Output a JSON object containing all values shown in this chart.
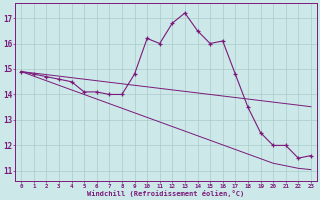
{
  "x": [
    0,
    1,
    2,
    3,
    4,
    5,
    6,
    7,
    8,
    9,
    10,
    11,
    12,
    13,
    14,
    15,
    16,
    17,
    18,
    19,
    20,
    21,
    22,
    23
  ],
  "y_main": [
    14.9,
    14.8,
    14.7,
    14.6,
    14.5,
    14.1,
    14.1,
    14.0,
    14.0,
    14.8,
    16.2,
    16.0,
    16.8,
    17.2,
    16.5,
    16.0,
    16.1,
    14.8,
    13.5,
    12.5,
    12.0,
    12.0,
    11.5,
    11.6
  ],
  "y_line1": [
    14.9,
    14.84,
    14.78,
    14.72,
    14.66,
    14.6,
    14.54,
    14.48,
    14.42,
    14.36,
    14.3,
    14.24,
    14.18,
    14.12,
    14.06,
    14.0,
    13.94,
    13.88,
    13.82,
    13.76,
    13.7,
    13.64,
    13.58,
    13.52
  ],
  "y_line2": [
    14.9,
    14.72,
    14.54,
    14.36,
    14.18,
    14.0,
    13.82,
    13.64,
    13.46,
    13.28,
    13.1,
    12.92,
    12.74,
    12.56,
    12.38,
    12.2,
    12.02,
    11.84,
    11.66,
    11.48,
    11.3,
    11.2,
    11.1,
    11.05
  ],
  "bg_color": "#cce8e8",
  "grid_color": "#aacccc",
  "line_color": "#7b1a7b",
  "xlabel": "Windchill (Refroidissement éolien,°C)",
  "ylabel_ticks": [
    11,
    12,
    13,
    14,
    15,
    16,
    17
  ],
  "ylim": [
    10.6,
    17.6
  ],
  "xlim": [
    -0.5,
    23.5
  ]
}
